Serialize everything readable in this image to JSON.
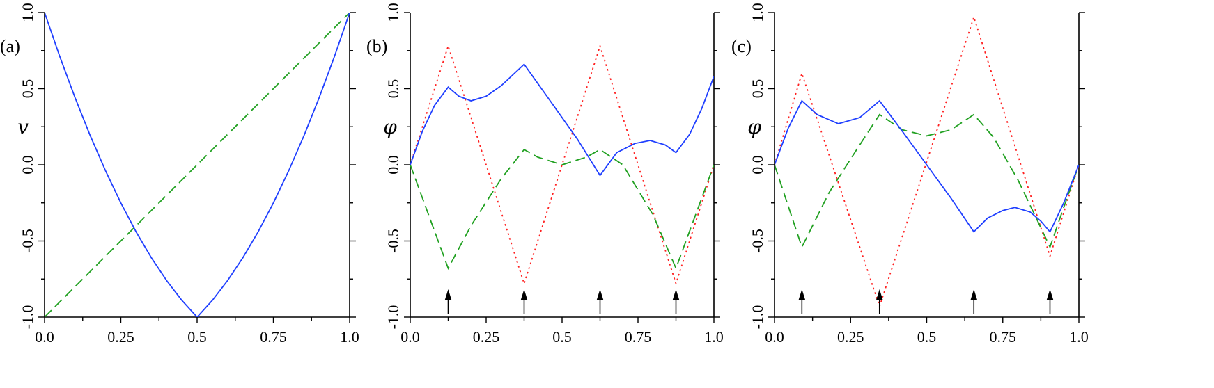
{
  "chart_data": [
    {
      "type": "line",
      "panel_label": "(a)",
      "ylabel": "v",
      "xlabel": "",
      "xlim": [
        0,
        1
      ],
      "ylim": [
        -1,
        1
      ],
      "x_ticks": [
        "0.0",
        "0.25",
        "0.5",
        "0.75",
        "1.0"
      ],
      "y_ticks": [
        "1.0",
        "0.5",
        "0.0",
        "-0.5",
        "-1.0"
      ],
      "series": [
        {
          "name": "solid",
          "color": "#1f3fff",
          "style": "solid",
          "x": [
            0.0,
            0.05,
            0.1,
            0.15,
            0.2,
            0.25,
            0.3,
            0.35,
            0.4,
            0.45,
            0.5,
            0.55,
            0.6,
            0.65,
            0.7,
            0.75,
            0.8,
            0.85,
            0.9,
            0.95,
            1.0
          ],
          "y": [
            1.0,
            0.71,
            0.44,
            0.19,
            -0.04,
            -0.25,
            -0.44,
            -0.61,
            -0.76,
            -0.89,
            -1.0,
            -0.89,
            -0.76,
            -0.61,
            -0.44,
            -0.25,
            -0.04,
            0.19,
            0.44,
            0.71,
            1.0
          ]
        },
        {
          "name": "dashed",
          "color": "#20a020",
          "style": "dashed",
          "x": [
            0.0,
            1.0
          ],
          "y": [
            -1.0,
            1.0
          ]
        },
        {
          "name": "dotted",
          "color": "#ff2020",
          "style": "dotted",
          "x": [
            0.0,
            1.0
          ],
          "y": [
            1.0,
            1.0
          ]
        }
      ],
      "arrows_x": []
    },
    {
      "type": "line",
      "panel_label": "(b)",
      "ylabel": "φ",
      "xlabel": "",
      "xlim": [
        0,
        1
      ],
      "ylim": [
        -1,
        1
      ],
      "x_ticks": [
        "0.0",
        "0.25",
        "0.5",
        "0.75",
        "1.0"
      ],
      "y_ticks": [
        "1.0",
        "0.5",
        "0.0",
        "-0.5",
        "-1.0"
      ],
      "series": [
        {
          "name": "solid",
          "color": "#1f3fff",
          "style": "solid",
          "x": [
            0.0,
            0.04,
            0.08,
            0.125,
            0.16,
            0.2,
            0.25,
            0.3,
            0.375,
            0.45,
            0.55,
            0.625,
            0.68,
            0.74,
            0.79,
            0.84,
            0.875,
            0.92,
            0.96,
            1.0
          ],
          "y": [
            0.0,
            0.22,
            0.39,
            0.51,
            0.45,
            0.42,
            0.45,
            0.52,
            0.66,
            0.45,
            0.17,
            -0.07,
            0.08,
            0.14,
            0.16,
            0.13,
            0.08,
            0.2,
            0.37,
            0.58
          ]
        },
        {
          "name": "dashed",
          "color": "#20a020",
          "style": "dashed",
          "x": [
            0.0,
            0.125,
            0.2,
            0.3,
            0.375,
            0.42,
            0.5,
            0.58,
            0.625,
            0.7,
            0.8,
            0.875,
            1.0
          ],
          "y": [
            0.0,
            -0.68,
            -0.4,
            -0.09,
            0.1,
            0.05,
            0.0,
            0.05,
            0.1,
            0.0,
            -0.33,
            -0.68,
            0.0
          ]
        },
        {
          "name": "dotted",
          "color": "#ff2020",
          "style": "dotted",
          "x": [
            0.0,
            0.125,
            0.375,
            0.625,
            0.875,
            1.0
          ],
          "y": [
            0.0,
            0.78,
            -0.78,
            0.78,
            -0.78,
            0.0
          ]
        }
      ],
      "arrows_x": [
        0.125,
        0.375,
        0.625,
        0.875
      ]
    },
    {
      "type": "line",
      "panel_label": "(c)",
      "ylabel": "φ",
      "xlabel": "",
      "xlim": [
        0,
        1
      ],
      "ylim": [
        -1,
        1
      ],
      "x_ticks": [
        "0.0",
        "0.25",
        "0.5",
        "0.75",
        "1.0"
      ],
      "y_ticks": [
        "1.0",
        "0.5",
        "0.0",
        "-0.5",
        "-1.0"
      ],
      "series": [
        {
          "name": "solid",
          "color": "#1f3fff",
          "style": "solid",
          "x": [
            0.0,
            0.045,
            0.09,
            0.14,
            0.21,
            0.28,
            0.345,
            0.42,
            0.5,
            0.58,
            0.655,
            0.7,
            0.75,
            0.79,
            0.84,
            0.875,
            0.905,
            0.95,
            1.0
          ],
          "y": [
            0.0,
            0.24,
            0.42,
            0.33,
            0.27,
            0.31,
            0.42,
            0.22,
            0.0,
            -0.22,
            -0.44,
            -0.35,
            -0.3,
            -0.28,
            -0.31,
            -0.37,
            -0.44,
            -0.25,
            0.0
          ]
        },
        {
          "name": "dashed",
          "color": "#20a020",
          "style": "dashed",
          "x": [
            0.0,
            0.09,
            0.18,
            0.27,
            0.345,
            0.42,
            0.5,
            0.58,
            0.655,
            0.72,
            0.8,
            0.86,
            0.905,
            0.95,
            1.0
          ],
          "y": [
            0.0,
            -0.54,
            -0.18,
            0.1,
            0.33,
            0.23,
            0.19,
            0.23,
            0.33,
            0.18,
            -0.1,
            -0.35,
            -0.54,
            -0.28,
            0.0
          ]
        },
        {
          "name": "dotted",
          "color": "#ff2020",
          "style": "dotted",
          "x": [
            0.0,
            0.09,
            0.345,
            0.655,
            0.905,
            1.0
          ],
          "y": [
            0.0,
            0.6,
            -0.93,
            0.97,
            -0.6,
            0.0
          ]
        }
      ],
      "arrows_x": [
        0.09,
        0.345,
        0.655,
        0.905
      ]
    }
  ]
}
